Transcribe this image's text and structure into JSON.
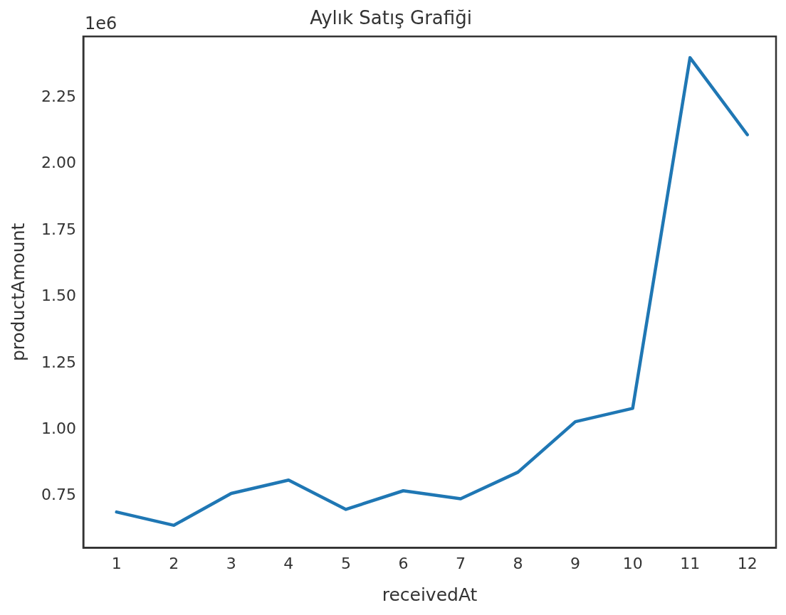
{
  "chart_data": {
    "type": "line",
    "title": "Aylık Satış Grafiği",
    "xlabel": "receivedAt",
    "ylabel": "productAmount",
    "annotations": [
      "1e6"
    ],
    "x": [
      1,
      2,
      3,
      4,
      5,
      6,
      7,
      8,
      9,
      10,
      11,
      12
    ],
    "series": [
      {
        "color": "#1f77b4",
        "values": [
          0.69,
          0.64,
          0.76,
          0.81,
          0.7,
          0.77,
          0.74,
          0.84,
          1.03,
          1.08,
          2.4,
          2.11
        ]
      }
    ],
    "xlim": [
      0.42,
      12.5
    ],
    "xticks": [
      1,
      2,
      3,
      4,
      5,
      6,
      7,
      8,
      9,
      10,
      11,
      12
    ],
    "ylim": [
      0.555,
      2.48
    ],
    "yticks": [
      0.75,
      {
        "value": 1,
        "label": "1.00"
      },
      1.25,
      {
        "value": 1.5,
        "label": "1.50"
      },
      1.75,
      {
        "value": 2,
        "label": "2.00"
      },
      2.25
    ],
    "grid": false,
    "legend": false,
    "marker": "none",
    "line_style": "solid"
  }
}
